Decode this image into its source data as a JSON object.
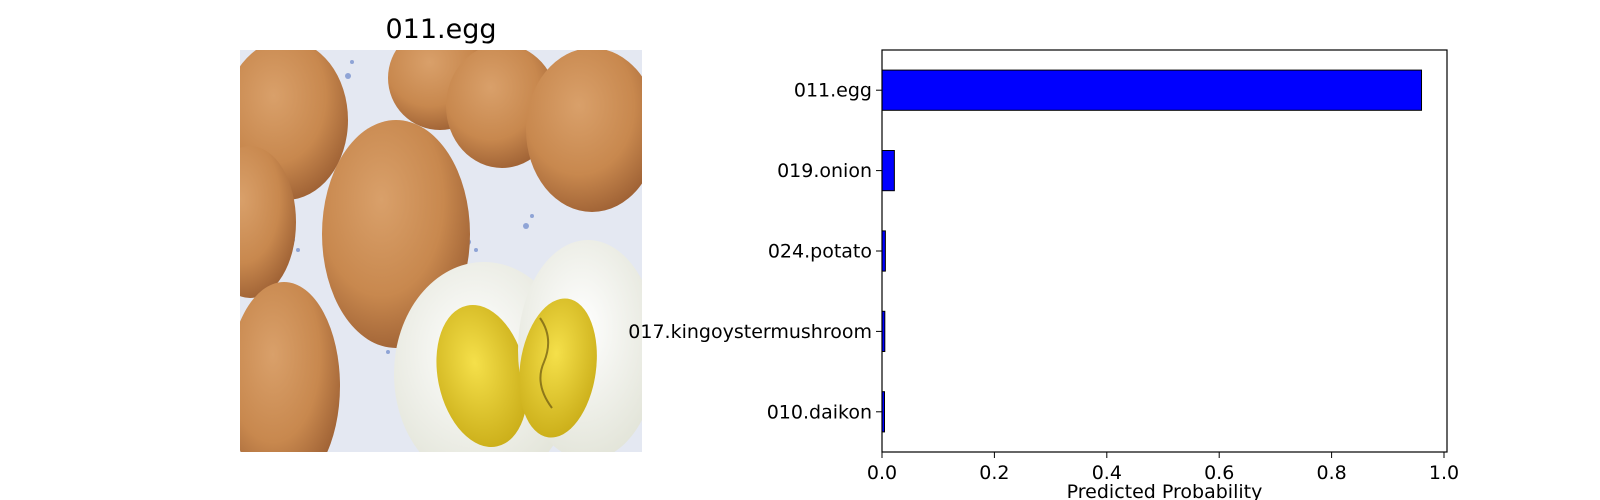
{
  "image_title": "011.egg",
  "photo": {
    "subject": "eggs",
    "colors": {
      "background": "#e4e8f2",
      "shell": "#c8884e",
      "shell_dark": "#a8693a",
      "white": "#f3f4ea",
      "yolk": "#e8cf2a",
      "yolk_dark": "#c9ac17",
      "pattern": "#4a6dc0"
    }
  },
  "chart_data": {
    "type": "bar",
    "orientation": "horizontal",
    "categories": [
      "011.egg",
      "019.onion",
      "024.potato",
      "017.kingoystermushroom",
      "010.daikon"
    ],
    "values": [
      0.96,
      0.022,
      0.006,
      0.005,
      0.004
    ],
    "xlabel": "Predicted Probability",
    "ylabel": "",
    "xlim": [
      0,
      1.0
    ],
    "xticks": [
      0.0,
      0.2,
      0.4,
      0.6,
      0.8,
      1.0
    ],
    "xtick_labels": [
      "0.0",
      "0.2",
      "0.4",
      "0.6",
      "0.8",
      "1.0"
    ],
    "grid": false,
    "colors": {
      "bar": "#0000ff",
      "bar_edge": "#000000",
      "axis": "#000000"
    }
  }
}
